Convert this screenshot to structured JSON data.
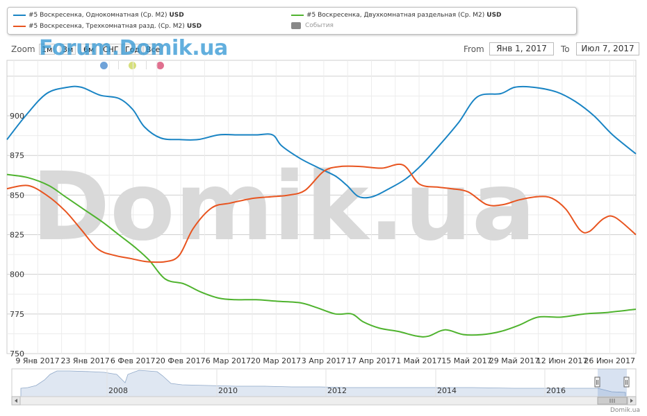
{
  "legend": {
    "items": [
      {
        "label": "#5 Воскресенка, Однокомнатная (Ср. М2)",
        "unit": "USD",
        "color": "#1984c4"
      },
      {
        "label": "#5 Воскресенка, Двухкомнатная раздельная (Ср. М2)",
        "unit": "USD",
        "color": "#4fb32e"
      },
      {
        "label": "#5 Воскресенка, Трехкомнатная разд. (Ср. М2)",
        "unit": "USD",
        "color": "#e8541f"
      },
      {
        "label": "События",
        "unit": "",
        "color": "#888888"
      }
    ]
  },
  "controls": {
    "zoom_label": "Zoom",
    "zoom_buttons": [
      "1м",
      "3м",
      "6м",
      "СНГ",
      "Год",
      "Все"
    ],
    "from_label": "From",
    "from_value": "Янв 1, 2017",
    "to_label": "To",
    "to_value": "Июл 7, 2017"
  },
  "watermark": {
    "top": "Forum.Domik.ua",
    "center": "Domik.ua"
  },
  "event_dot_colors": [
    "#6ea2d8",
    "#d6df7c",
    "#e0708f"
  ],
  "credit": "Domik.ua",
  "chart_data": {
    "type": "line",
    "ylim": [
      750,
      935
    ],
    "y_ticks": [
      750,
      775,
      800,
      825,
      850,
      875,
      900
    ],
    "x_ticks": [
      "9 Янв 2017",
      "23 Янв 2017",
      "6 Фев 2017",
      "20 Фев 2017",
      "6 Мар 2017",
      "20 Мар 2017",
      "3 Апр 2017",
      "17 Апр 2017",
      "1 Май 2017",
      "15 Май 2017",
      "29 Май 2017",
      "12 Июн 2017",
      "26 Июн 2017"
    ],
    "series": [
      {
        "name": "#5 Воскресенка, Однокомнатная (Ср. М2)",
        "color": "#1984c4",
        "values": [
          [
            0,
            885
          ],
          [
            16,
            900
          ],
          [
            34,
            914
          ],
          [
            52,
            918
          ],
          [
            64,
            918
          ],
          [
            80,
            913
          ],
          [
            96,
            911
          ],
          [
            108,
            904
          ],
          [
            118,
            893
          ],
          [
            132,
            886
          ],
          [
            148,
            885
          ],
          [
            164,
            885
          ],
          [
            182,
            888
          ],
          [
            198,
            888
          ],
          [
            214,
            888
          ],
          [
            228,
            888
          ],
          [
            236,
            881
          ],
          [
            252,
            873
          ],
          [
            268,
            867
          ],
          [
            282,
            862
          ],
          [
            292,
            856
          ],
          [
            302,
            849
          ],
          [
            314,
            849
          ],
          [
            328,
            854
          ],
          [
            342,
            860
          ],
          [
            356,
            869
          ],
          [
            372,
            882
          ],
          [
            388,
            896
          ],
          [
            404,
            912
          ],
          [
            424,
            914
          ],
          [
            436,
            918
          ],
          [
            452,
            918
          ],
          [
            472,
            915
          ],
          [
            488,
            909
          ],
          [
            504,
            900
          ],
          [
            520,
            888
          ],
          [
            540,
            876
          ]
        ]
      },
      {
        "name": "#5 Воскресенка, Двухкомнатная раздельная (Ср. М2)",
        "color": "#4fb32e",
        "values": [
          [
            0,
            863
          ],
          [
            18,
            861
          ],
          [
            36,
            856
          ],
          [
            50,
            849
          ],
          [
            66,
            841
          ],
          [
            82,
            833
          ],
          [
            96,
            825
          ],
          [
            110,
            817
          ],
          [
            122,
            809
          ],
          [
            136,
            797
          ],
          [
            152,
            794
          ],
          [
            166,
            789
          ],
          [
            182,
            785
          ],
          [
            196,
            784
          ],
          [
            214,
            784
          ],
          [
            232,
            783
          ],
          [
            252,
            782
          ],
          [
            266,
            779
          ],
          [
            282,
            775
          ],
          [
            296,
            775
          ],
          [
            306,
            770
          ],
          [
            320,
            766
          ],
          [
            336,
            764
          ],
          [
            352,
            761
          ],
          [
            362,
            761
          ],
          [
            376,
            765
          ],
          [
            392,
            762
          ],
          [
            408,
            762
          ],
          [
            424,
            764
          ],
          [
            440,
            768
          ],
          [
            456,
            773
          ],
          [
            476,
            773
          ],
          [
            496,
            775
          ],
          [
            516,
            776
          ],
          [
            540,
            778
          ]
        ]
      },
      {
        "name": "#5 Воскресенка, Трехкомнатная разд. (Ср. М2)",
        "color": "#e8541f",
        "values": [
          [
            0,
            854
          ],
          [
            18,
            856
          ],
          [
            34,
            850
          ],
          [
            50,
            840
          ],
          [
            64,
            828
          ],
          [
            78,
            816
          ],
          [
            92,
            812
          ],
          [
            106,
            810
          ],
          [
            120,
            808
          ],
          [
            136,
            808
          ],
          [
            148,
            812
          ],
          [
            160,
            829
          ],
          [
            176,
            842
          ],
          [
            192,
            845
          ],
          [
            212,
            848
          ],
          [
            228,
            849
          ],
          [
            242,
            850
          ],
          [
            256,
            853
          ],
          [
            272,
            865
          ],
          [
            286,
            868
          ],
          [
            304,
            868
          ],
          [
            322,
            867
          ],
          [
            340,
            869
          ],
          [
            354,
            857
          ],
          [
            370,
            855
          ],
          [
            382,
            854
          ],
          [
            396,
            852
          ],
          [
            412,
            844
          ],
          [
            426,
            844
          ],
          [
            440,
            847
          ],
          [
            456,
            849
          ],
          [
            468,
            848
          ],
          [
            480,
            841
          ],
          [
            492,
            828
          ],
          [
            500,
            827
          ],
          [
            512,
            835
          ],
          [
            522,
            836
          ],
          [
            540,
            825
          ]
        ]
      }
    ],
    "navigator": {
      "x_labels": [
        "2008",
        "2010",
        "2012",
        "2014",
        "2016"
      ]
    }
  }
}
